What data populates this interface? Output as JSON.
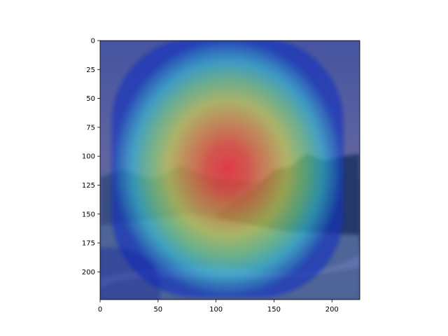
{
  "chart_data": {
    "type": "heatmap",
    "title": "",
    "xlabel": "",
    "ylabel": "",
    "image_size": [
      224,
      224
    ],
    "xlim": [
      0,
      224
    ],
    "ylim": [
      224,
      0
    ],
    "x_ticks": [
      0,
      50,
      100,
      150,
      200
    ],
    "y_ticks": [
      0,
      25,
      50,
      75,
      100,
      125,
      150,
      175,
      200
    ],
    "x_tick_labels": [
      "0",
      "50",
      "100",
      "150",
      "200"
    ],
    "y_tick_labels": [
      "0",
      "25",
      "50",
      "75",
      "100",
      "125",
      "150",
      "175",
      "200"
    ],
    "colormap": "jet",
    "overlay": "attention heatmap over a landscape photo (mountains, trees, sky)",
    "hotspot_center": [
      110,
      110
    ],
    "hotspot_peak": 1.0,
    "grid": false,
    "colors": {
      "sky": "#8c7d78",
      "mountain": "#55604a",
      "trees": "#2e3a1e",
      "ground": "#7c8a70",
      "water": "#a4aca0"
    }
  }
}
